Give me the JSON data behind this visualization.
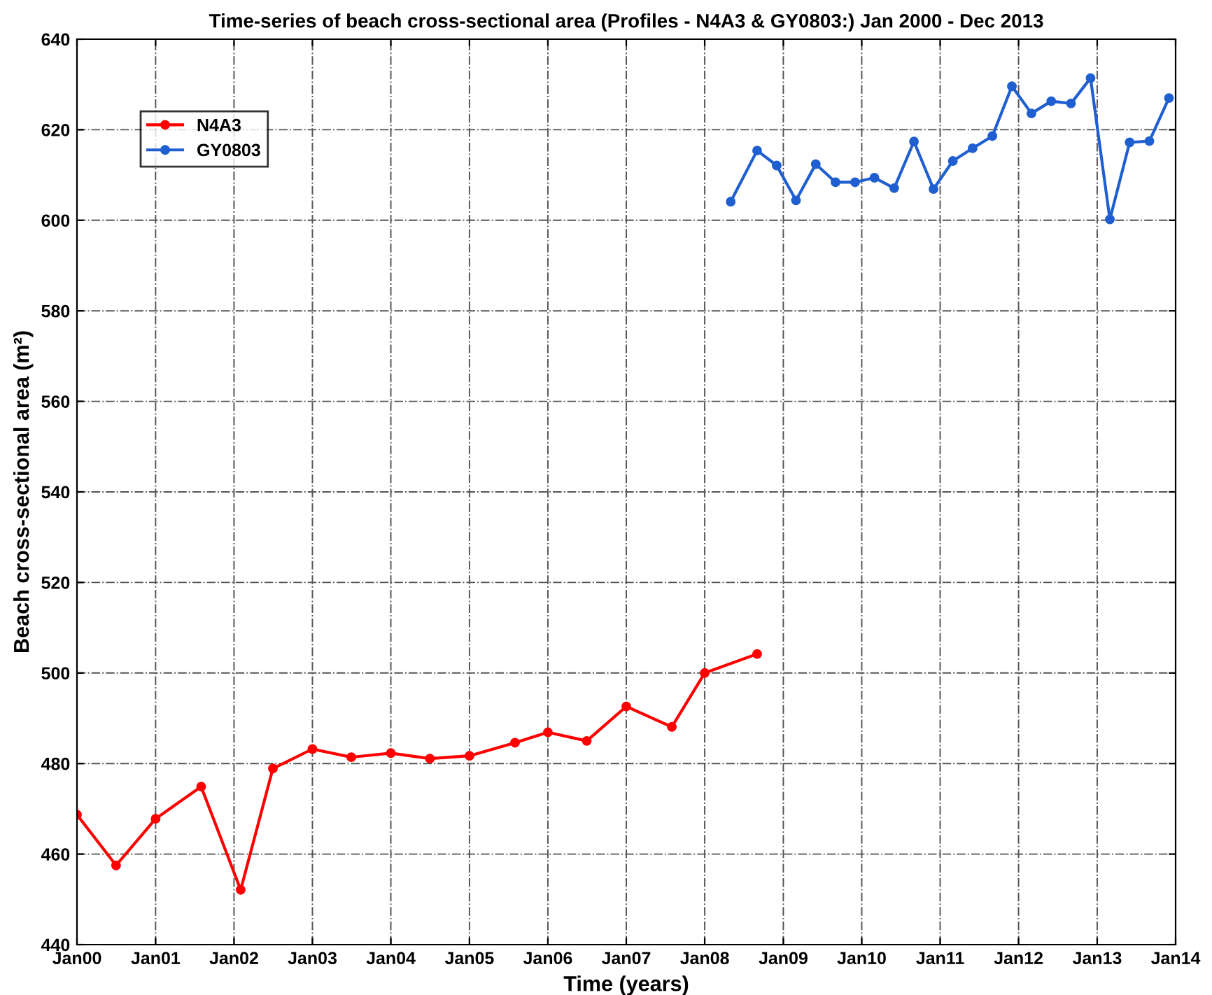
{
  "chart_data": {
    "type": "line",
    "title": "Time-series of beach cross-sectional area (Profiles - N4A3 & GY0803:) Jan 2000 - Dec 2013",
    "xlabel": "Time (years)",
    "ylabel": "Beach cross-sectional area (m²)",
    "series": [
      {
        "name": "N4A3",
        "color": "#ff0000",
        "x": [
          "2000-01",
          "2000-07",
          "2001-01",
          "2001-08",
          "2002-02",
          "2002-07",
          "2003-01",
          "2003-07",
          "2004-01",
          "2004-07",
          "2005-01",
          "2005-08",
          "2006-01",
          "2006-07",
          "2007-01",
          "2007-08",
          "2008-01",
          "2008-09"
        ],
        "values": [
          468.7,
          457.5,
          467.8,
          474.9,
          452.1,
          478.9,
          483.2,
          481.4,
          482.3,
          481.1,
          481.7,
          484.6,
          486.9,
          485.0,
          492.6,
          488.1,
          500.0,
          504.2
        ]
      },
      {
        "name": "GY0803",
        "color": "#1f5fd0",
        "x": [
          "2008-05",
          "2008-09",
          "2008-12",
          "2009-03",
          "2009-06",
          "2009-09",
          "2009-12",
          "2010-03",
          "2010-06",
          "2010-09",
          "2010-12",
          "2011-03",
          "2011-06",
          "2011-09",
          "2011-12",
          "2012-03",
          "2012-06",
          "2012-09",
          "2012-12",
          "2013-03",
          "2013-06",
          "2013-09",
          "2013-12"
        ],
        "values": [
          604.1,
          615.4,
          612.1,
          604.4,
          612.4,
          608.4,
          608.4,
          609.4,
          607.1,
          617.4,
          606.9,
          613.1,
          615.9,
          618.6,
          629.6,
          623.6,
          626.3,
          625.8,
          631.4,
          600.2,
          617.2,
          617.5,
          627.0
        ]
      }
    ],
    "xlim": [
      "2000-01",
      "2014-01"
    ],
    "xticks": [
      {
        "value": "2000-01",
        "label": "Jan00"
      },
      {
        "value": "2001-01",
        "label": "Jan01"
      },
      {
        "value": "2002-01",
        "label": "Jan02"
      },
      {
        "value": "2003-01",
        "label": "Jan03"
      },
      {
        "value": "2004-01",
        "label": "Jan04"
      },
      {
        "value": "2005-01",
        "label": "Jan05"
      },
      {
        "value": "2006-01",
        "label": "Jan06"
      },
      {
        "value": "2007-01",
        "label": "Jan07"
      },
      {
        "value": "2008-01",
        "label": "Jan08"
      },
      {
        "value": "2009-01",
        "label": "Jan09"
      },
      {
        "value": "2010-01",
        "label": "Jan10"
      },
      {
        "value": "2011-01",
        "label": "Jan11"
      },
      {
        "value": "2012-01",
        "label": "Jan12"
      },
      {
        "value": "2013-01",
        "label": "Jan13"
      },
      {
        "value": "2014-01",
        "label": "Jan14"
      }
    ],
    "ylim": [
      440,
      640
    ],
    "yticks": [
      440,
      460,
      480,
      500,
      520,
      540,
      560,
      580,
      600,
      620,
      640
    ],
    "grid": true,
    "legend": "top left",
    "marker": "circle",
    "line_style": "solid"
  }
}
